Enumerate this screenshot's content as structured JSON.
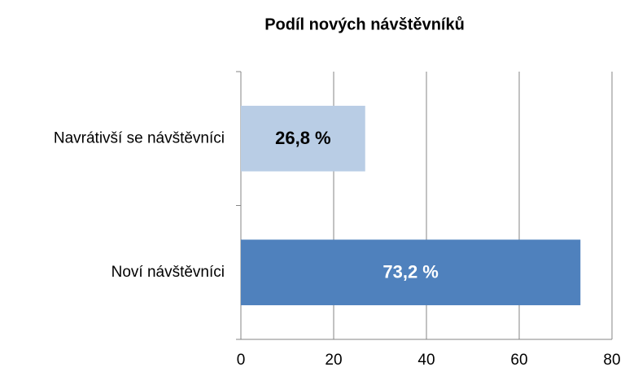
{
  "chart_data": {
    "type": "hbar",
    "title": "Podíl nových návštěvníků",
    "categories": [
      "Navrátivší se návštěvníci",
      "Noví návštěvníci"
    ],
    "values": [
      26.8,
      73.2
    ],
    "value_labels": [
      "26,8 %",
      "73,2 %"
    ],
    "colors": [
      "#b9cde5",
      "#4f81bd"
    ],
    "value_label_colors": [
      "#000000",
      "#ffffff"
    ],
    "xlim": [
      0,
      80
    ],
    "xticks": [
      0,
      20,
      40,
      60,
      80
    ],
    "grid": true
  }
}
